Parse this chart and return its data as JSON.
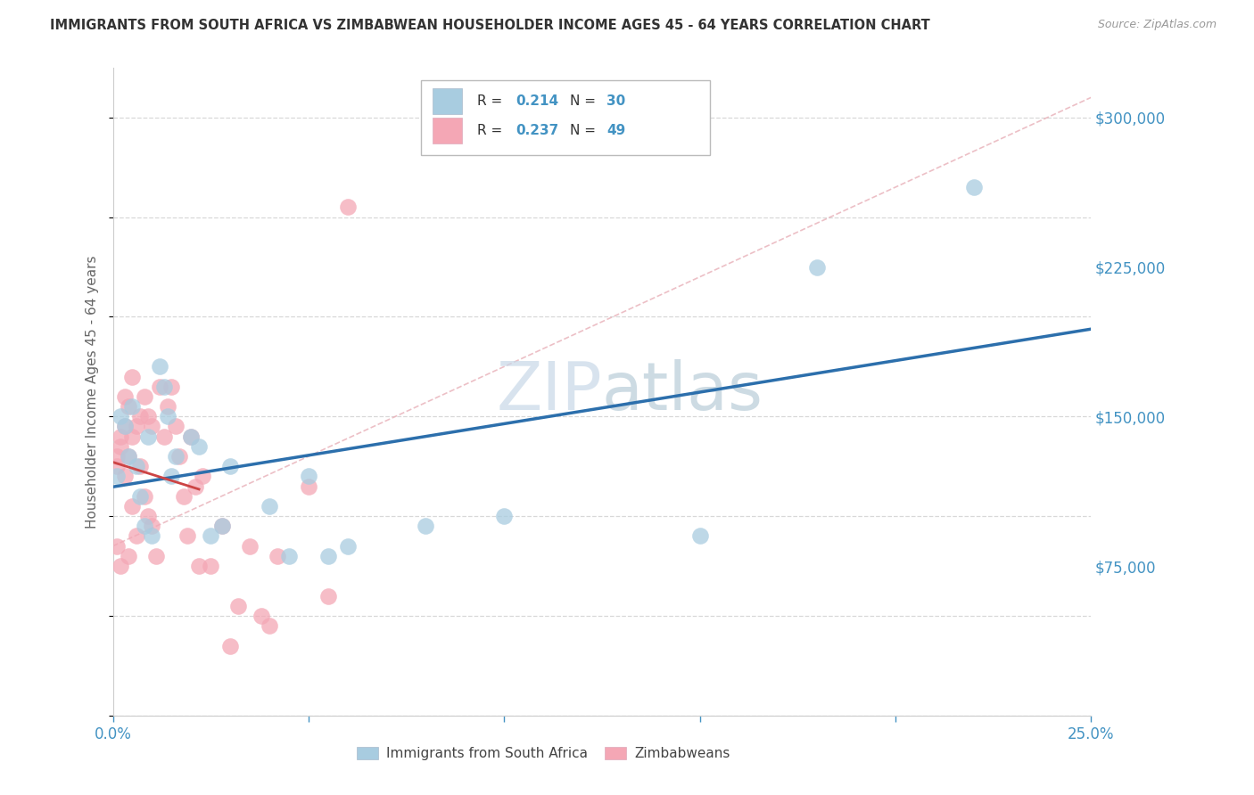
{
  "title": "IMMIGRANTS FROM SOUTH AFRICA VS ZIMBABWEAN HOUSEHOLDER INCOME AGES 45 - 64 YEARS CORRELATION CHART",
  "source": "Source: ZipAtlas.com",
  "ylabel": "Householder Income Ages 45 - 64 years",
  "xmin": 0.0,
  "xmax": 0.25,
  "ymin": 0,
  "ymax": 325000,
  "ytick_positions": [
    75000,
    150000,
    225000,
    300000
  ],
  "ytick_labels": [
    "$75,000",
    "$150,000",
    "$225,000",
    "$300,000"
  ],
  "xtick_positions": [
    0.0,
    0.05,
    0.1,
    0.15,
    0.2,
    0.25
  ],
  "xtick_labels": [
    "0.0%",
    "",
    "",
    "",
    "",
    "25.0%"
  ],
  "legend_r1_val": "0.214",
  "legend_n1_val": "30",
  "legend_r2_val": "0.237",
  "legend_n2_val": "49",
  "legend_label1": "Immigrants from South Africa",
  "legend_label2": "Zimbabweans",
  "blue_scatter_color": "#a8cce0",
  "pink_scatter_color": "#f4a7b5",
  "blue_line_color": "#2c6fac",
  "pink_line_color": "#cc4444",
  "pink_dash_color": "#e8b0b8",
  "axis_tick_color": "#4393c3",
  "title_color": "#333333",
  "source_color": "#999999",
  "grid_color": "#d8d8d8",
  "watermark_color": "#dde8f0",
  "legend_val_color": "#4393c3",
  "legend_text_color": "#333333",
  "south_africa_x": [
    0.001,
    0.002,
    0.003,
    0.004,
    0.005,
    0.006,
    0.007,
    0.008,
    0.009,
    0.01,
    0.012,
    0.013,
    0.014,
    0.015,
    0.016,
    0.02,
    0.022,
    0.025,
    0.028,
    0.03,
    0.04,
    0.045,
    0.05,
    0.055,
    0.06,
    0.08,
    0.1,
    0.15,
    0.18,
    0.22
  ],
  "south_africa_y": [
    120000,
    150000,
    145000,
    130000,
    155000,
    125000,
    110000,
    95000,
    140000,
    90000,
    175000,
    165000,
    150000,
    120000,
    130000,
    140000,
    135000,
    90000,
    95000,
    125000,
    105000,
    80000,
    120000,
    80000,
    85000,
    95000,
    100000,
    90000,
    225000,
    265000
  ],
  "zimbabwe_x": [
    0.001,
    0.001,
    0.001,
    0.002,
    0.002,
    0.002,
    0.003,
    0.003,
    0.003,
    0.004,
    0.004,
    0.004,
    0.005,
    0.005,
    0.005,
    0.006,
    0.006,
    0.007,
    0.007,
    0.008,
    0.008,
    0.009,
    0.009,
    0.01,
    0.01,
    0.011,
    0.012,
    0.013,
    0.014,
    0.015,
    0.016,
    0.017,
    0.018,
    0.019,
    0.02,
    0.021,
    0.022,
    0.023,
    0.025,
    0.028,
    0.03,
    0.032,
    0.035,
    0.038,
    0.04,
    0.042,
    0.05,
    0.055,
    0.06
  ],
  "zimbabwe_y": [
    125000,
    130000,
    85000,
    140000,
    135000,
    75000,
    160000,
    145000,
    120000,
    155000,
    130000,
    80000,
    170000,
    140000,
    105000,
    145000,
    90000,
    150000,
    125000,
    160000,
    110000,
    150000,
    100000,
    145000,
    95000,
    80000,
    165000,
    140000,
    155000,
    165000,
    145000,
    130000,
    110000,
    90000,
    140000,
    115000,
    75000,
    120000,
    75000,
    95000,
    35000,
    55000,
    85000,
    50000,
    45000,
    80000,
    115000,
    60000,
    255000
  ]
}
